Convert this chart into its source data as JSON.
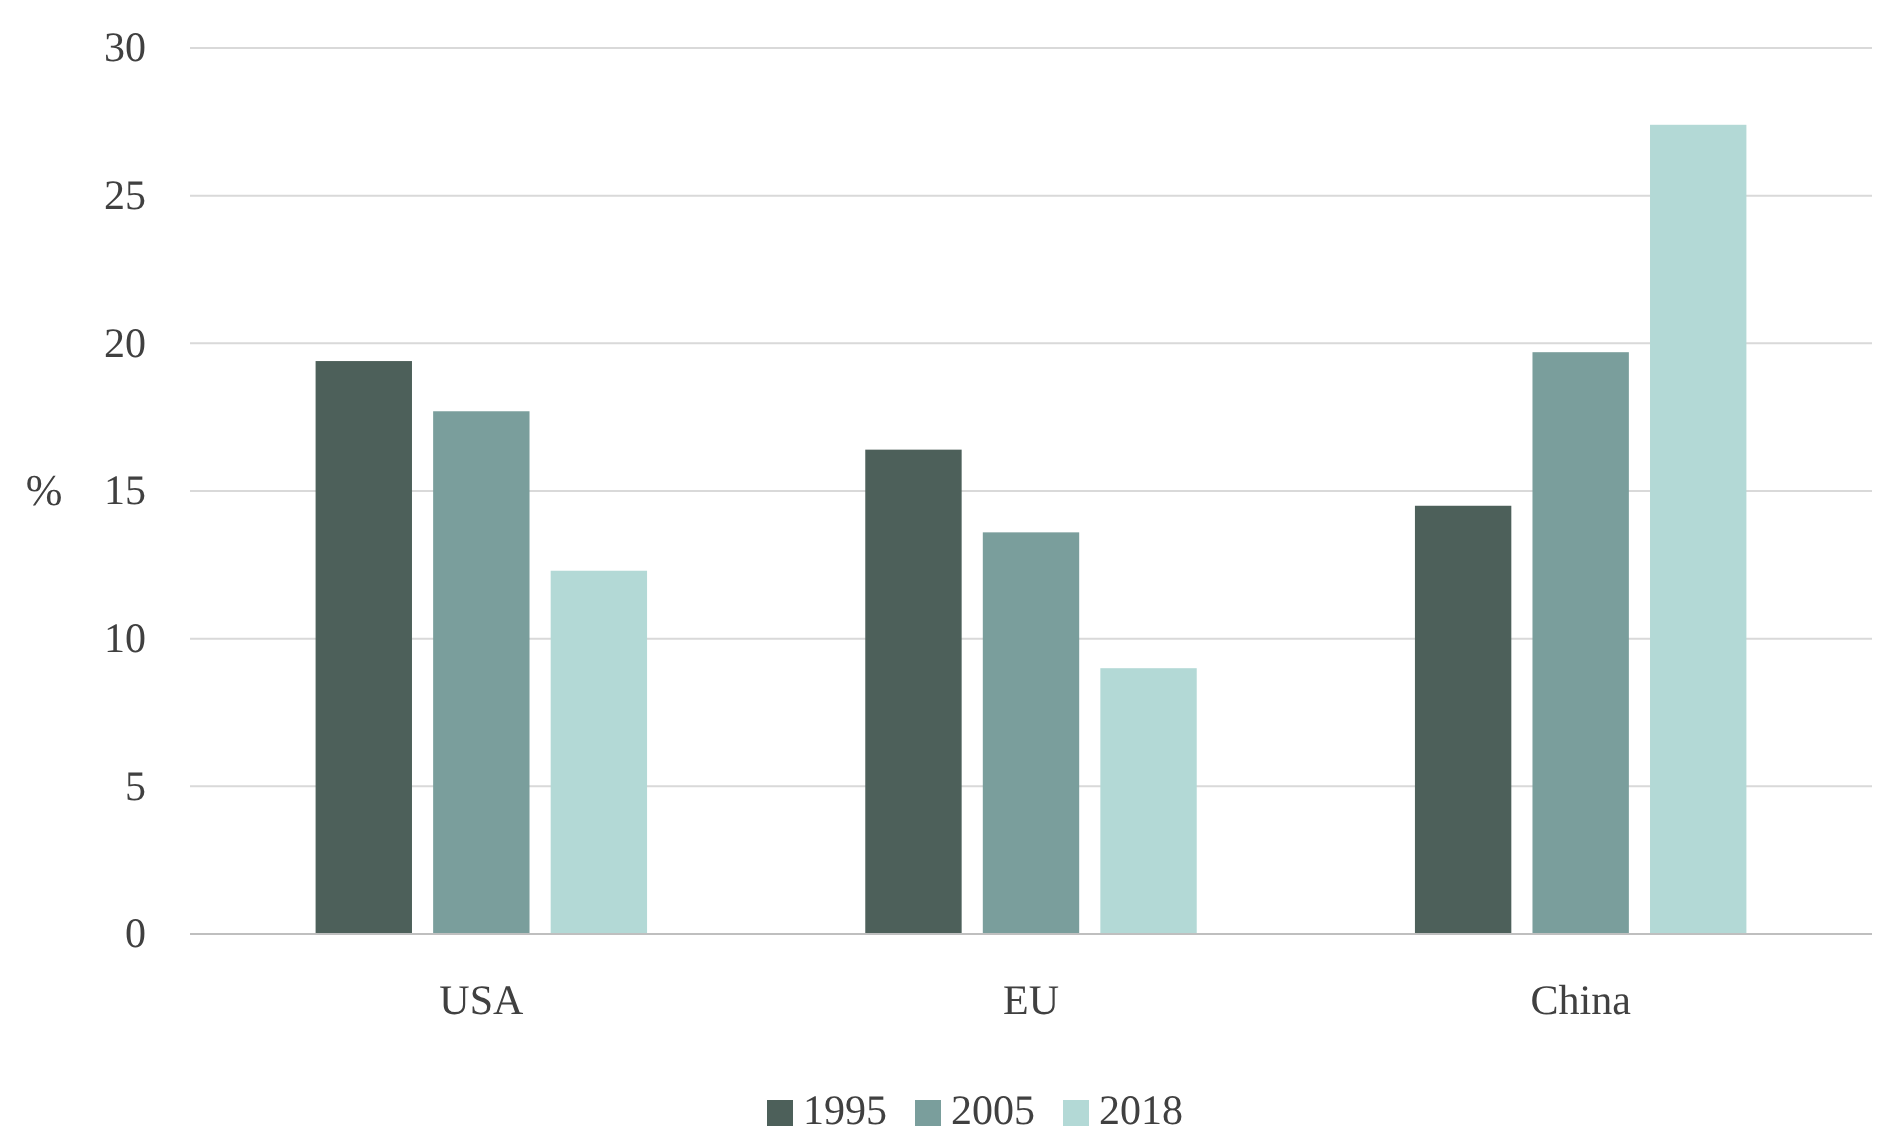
{
  "chart_data": {
    "type": "bar",
    "ylabel": "%",
    "categories": [
      "USA",
      "EU",
      "China"
    ],
    "series": [
      {
        "name": "1995",
        "color": "#4d605a",
        "values": [
          19.4,
          16.4,
          14.5
        ]
      },
      {
        "name": "2005",
        "color": "#7a9e9c",
        "values": [
          17.7,
          13.6,
          19.7
        ]
      },
      {
        "name": "2018",
        "color": "#b3d9d6",
        "values": [
          12.3,
          9.0,
          27.4
        ]
      }
    ],
    "ylim": [
      0,
      30
    ],
    "yticks": [
      0,
      5,
      10,
      15,
      20,
      25,
      30
    ],
    "grid": "y",
    "legend": "bottom"
  }
}
